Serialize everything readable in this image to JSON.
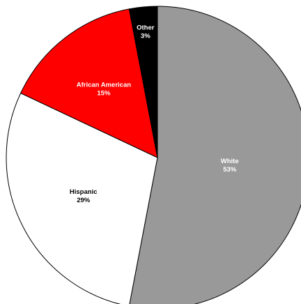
{
  "chart_data": {
    "type": "pie",
    "title": "",
    "slices": [
      {
        "label": "White",
        "value": 53,
        "value_label": "53%",
        "color": "#999999",
        "text_color": "#ffffff"
      },
      {
        "label": "Hispanic",
        "value": 29,
        "value_label": "29%",
        "color": "#ffffff",
        "text_color": "#000000"
      },
      {
        "label": "African American",
        "value": 15,
        "value_label": "15%",
        "color": "#ff0000",
        "text_color": "#ffffff"
      },
      {
        "label": "Other",
        "value": 3,
        "value_label": "3%",
        "color": "#000000",
        "text_color": "#ffffff"
      }
    ],
    "start_angle": "top",
    "direction": "clockwise",
    "legend": "none"
  }
}
